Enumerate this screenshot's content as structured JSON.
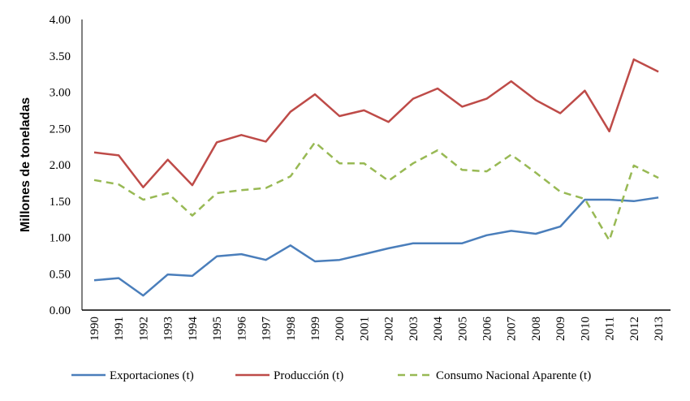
{
  "chart_data": {
    "type": "line",
    "title": "",
    "xlabel": "",
    "ylabel": "Millones de toneladas",
    "ylim": [
      0,
      4
    ],
    "yticks": [
      "0.00",
      "0.50",
      "1.00",
      "1.50",
      "2.00",
      "2.50",
      "3.00",
      "3.50",
      "4.00"
    ],
    "grid": false,
    "legend_position": "bottom",
    "categories": [
      "1990",
      "1991",
      "1992",
      "1993",
      "1994",
      "1995",
      "1996",
      "1997",
      "1998",
      "1999",
      "2000",
      "2001",
      "2002",
      "2003",
      "2004",
      "2005",
      "2006",
      "2007",
      "2008",
      "2009",
      "2010",
      "2011",
      "2012",
      "2013"
    ],
    "series": [
      {
        "name": "Exportaciones (t)",
        "color": "#4a7ebb",
        "dash": "solid",
        "values": [
          0.41,
          0.44,
          0.2,
          0.49,
          0.47,
          0.74,
          0.77,
          0.69,
          0.89,
          0.67,
          0.69,
          0.77,
          0.85,
          0.92,
          0.92,
          0.92,
          1.03,
          1.09,
          1.05,
          1.15,
          1.52,
          1.52,
          1.5,
          1.55
        ]
      },
      {
        "name": "Producción (t)",
        "color": "#be4b48",
        "dash": "solid",
        "values": [
          2.17,
          2.13,
          1.69,
          2.07,
          1.72,
          2.31,
          2.41,
          2.32,
          2.73,
          2.97,
          2.67,
          2.75,
          2.59,
          2.91,
          3.05,
          2.8,
          2.91,
          3.15,
          2.89,
          2.71,
          3.02,
          2.46,
          3.45,
          3.28
        ]
      },
      {
        "name": "Consumo Nacional Aparente (t)",
        "color": "#98b954",
        "dash": "dashed",
        "values": [
          1.79,
          1.73,
          1.52,
          1.61,
          1.3,
          1.61,
          1.65,
          1.68,
          1.84,
          2.31,
          2.02,
          2.02,
          1.78,
          2.02,
          2.2,
          1.93,
          1.91,
          2.14,
          1.89,
          1.63,
          1.53,
          0.96,
          1.99,
          1.82
        ]
      }
    ]
  }
}
